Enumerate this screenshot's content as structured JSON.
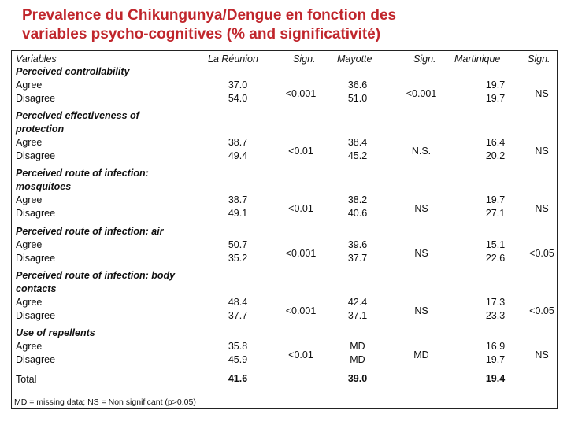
{
  "title_line1": "Prevalence du Chikungunya/Dengue en fonction des",
  "title_line2": "variables psycho-cognitives (% and significativité)",
  "headers": {
    "variables": "Variables",
    "reunion": "La Réunion",
    "sign1": "Sign.",
    "mayotte": "Mayotte",
    "sign2": "Sign.",
    "martinique": "Martinique",
    "sign3": "Sign."
  },
  "rows": [
    {
      "title": "Perceived controllability",
      "agree": "Agree",
      "disagree": "Disagree",
      "reunion": [
        "37.0",
        "54.0"
      ],
      "reunion_sig": "<0.001",
      "mayotte": [
        "36.6",
        "51.0"
      ],
      "mayotte_sig": "<0.001",
      "martinique": [
        "19.7",
        "19.7"
      ],
      "martinique_sig": "NS"
    },
    {
      "title": "Perceived effectiveness of protection",
      "agree": "Agree",
      "disagree": "Disagree",
      "reunion": [
        "38.7",
        "49.4"
      ],
      "reunion_sig": "<0.01",
      "mayotte": [
        "38.4",
        "45.2"
      ],
      "mayotte_sig": "N.S.",
      "martinique": [
        "16.4",
        "20.2"
      ],
      "martinique_sig": "NS"
    },
    {
      "title": "Perceived route of infection: mosquitoes",
      "agree": "Agree",
      "disagree": "Disagree",
      "reunion": [
        "38.7",
        "49.1"
      ],
      "reunion_sig": "<0.01",
      "mayotte": [
        "38.2",
        "40.6"
      ],
      "mayotte_sig": "NS",
      "martinique": [
        "19.7",
        "27.1"
      ],
      "martinique_sig": "NS"
    },
    {
      "title": "Perceived route of infection: air",
      "agree": "Agree",
      "disagree": "Disagree",
      "reunion": [
        "50.7",
        "35.2"
      ],
      "reunion_sig": "<0.001",
      "mayotte": [
        "39.6",
        "37.7"
      ],
      "mayotte_sig": "NS",
      "martinique": [
        "15.1",
        "22.6"
      ],
      "martinique_sig": "<0.05"
    },
    {
      "title": "Perceived route of infection: body contacts",
      "agree": "Agree",
      "disagree": "Disagree",
      "reunion": [
        "48.4",
        "37.7"
      ],
      "reunion_sig": "<0.001",
      "mayotte": [
        "42.4",
        "37.1"
      ],
      "mayotte_sig": "NS",
      "martinique": [
        "17.3",
        "23.3"
      ],
      "martinique_sig": "<0.05"
    },
    {
      "title": "Use of repellents",
      "agree": "Agree",
      "disagree": "Disagree",
      "reunion": [
        "35.8",
        "45.9"
      ],
      "reunion_sig": "<0.01",
      "mayotte": [
        "MD",
        "MD"
      ],
      "mayotte_sig": "MD",
      "martinique": [
        "16.9",
        "19.7"
      ],
      "martinique_sig": "NS"
    }
  ],
  "total": {
    "label": "Total",
    "reunion": "41.6",
    "mayotte": "39.0",
    "martinique": "19.4"
  },
  "footnote": "MD = missing data; NS = Non significant (p>0.05)"
}
